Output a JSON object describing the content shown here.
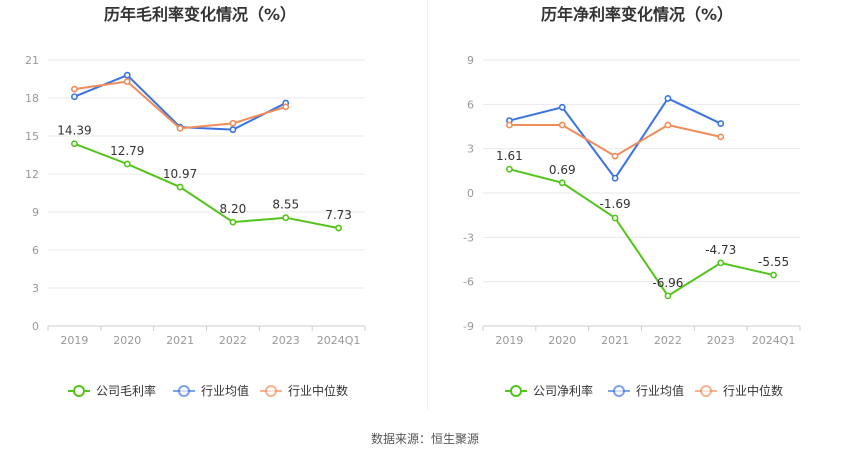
{
  "source_label": "数据来源：恒生聚源",
  "colors": {
    "company": "#52c41a",
    "industry_avg": "#3b73e0",
    "industry_median": "#f08c5a",
    "grid": "#e8e8e8",
    "axis_text": "#999999"
  },
  "chart_data": [
    {
      "type": "line",
      "title": "历年毛利率变化情况（%）",
      "categories": [
        "2019",
        "2020",
        "2021",
        "2022",
        "2023",
        "2024Q1"
      ],
      "ylim": [
        0,
        21
      ],
      "yticks": [
        0,
        3,
        6,
        9,
        12,
        15,
        18,
        21
      ],
      "series": [
        {
          "name": "公司毛利率",
          "key": "company",
          "values": [
            14.39,
            12.79,
            10.97,
            8.2,
            8.55,
            7.73
          ],
          "labels": [
            "14.39",
            "12.79",
            "10.97",
            "8.20",
            "8.55",
            "7.73"
          ]
        },
        {
          "name": "行业均值",
          "key": "industry_avg",
          "values": [
            18.1,
            19.8,
            15.7,
            15.5,
            17.6,
            null
          ]
        },
        {
          "name": "行业中位数",
          "key": "industry_median",
          "values": [
            18.7,
            19.3,
            15.6,
            16.0,
            17.3,
            null
          ]
        }
      ]
    },
    {
      "type": "line",
      "title": "历年净利率变化情况（%）",
      "categories": [
        "2019",
        "2020",
        "2021",
        "2022",
        "2023",
        "2024Q1"
      ],
      "ylim": [
        -9,
        9
      ],
      "yticks": [
        -9,
        -6,
        -3,
        0,
        3,
        6,
        9
      ],
      "series": [
        {
          "name": "公司净利率",
          "key": "company",
          "values": [
            1.61,
            0.69,
            -1.69,
            -6.96,
            -4.73,
            -5.55
          ],
          "labels": [
            "1.61",
            "0.69",
            "-1.69",
            "-6.96",
            "-4.73",
            "-5.55"
          ]
        },
        {
          "name": "行业均值",
          "key": "industry_avg",
          "values": [
            4.9,
            5.8,
            1.0,
            6.4,
            4.7,
            null
          ]
        },
        {
          "name": "行业中位数",
          "key": "industry_median",
          "values": [
            4.6,
            4.6,
            2.5,
            4.6,
            3.8,
            null
          ]
        }
      ]
    }
  ]
}
